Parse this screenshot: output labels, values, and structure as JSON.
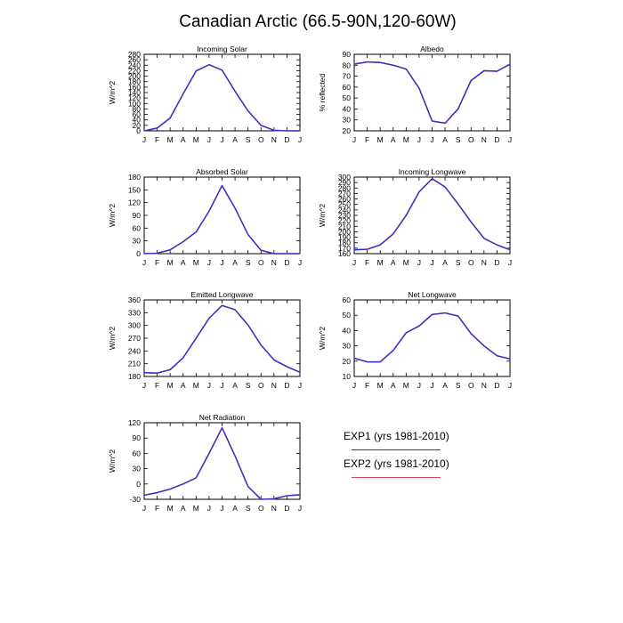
{
  "title": "Canadian Arctic (66.5-90N,120-60W)",
  "months": [
    "J",
    "F",
    "M",
    "A",
    "M",
    "J",
    "J",
    "A",
    "S",
    "O",
    "N",
    "D",
    "J"
  ],
  "legend": [
    {
      "name": "EXP1 (yrs 1981-2010)",
      "color": "#2f2fd6"
    },
    {
      "name": "EXP2 (yrs 1981-2010)",
      "color": "#e0405a"
    }
  ],
  "chart_data": [
    {
      "type": "line",
      "title": "Incoming Solar",
      "ylabel": "W/m^2",
      "ylim": [
        0,
        280
      ],
      "yticks": [
        0,
        20,
        40,
        60,
        80,
        100,
        120,
        140,
        160,
        180,
        200,
        220,
        240,
        260,
        280
      ],
      "series": [
        {
          "values": [
            0,
            10,
            47,
            135,
            219,
            242,
            222,
            145,
            73,
            20,
            2,
            0,
            0
          ]
        },
        {
          "values": [
            0,
            10,
            47,
            135,
            219,
            242,
            222,
            145,
            73,
            20,
            2,
            0,
            0
          ]
        }
      ]
    },
    {
      "type": "line",
      "title": "Albedo",
      "ylabel": "% reflected",
      "ylim": [
        20,
        90
      ],
      "yticks": [
        20,
        30,
        40,
        50,
        60,
        70,
        80,
        90
      ],
      "series": [
        {
          "values": [
            81,
            83,
            82.5,
            80,
            76.5,
            59,
            29,
            27,
            40,
            66,
            75,
            74.5,
            81
          ]
        },
        {
          "values": [
            81,
            83,
            82.5,
            80,
            76.5,
            59,
            29,
            27,
            40,
            66,
            75,
            74.5,
            81
          ]
        }
      ]
    },
    {
      "type": "line",
      "title": "Absorbed Solar",
      "ylabel": "W/m^2",
      "ylim": [
        0,
        180
      ],
      "yticks": [
        0,
        30,
        60,
        90,
        120,
        150,
        180
      ],
      "series": [
        {
          "values": [
            0,
            1,
            9,
            28,
            51,
            100,
            160,
            107,
            45,
            8,
            0,
            0,
            0
          ]
        },
        {
          "values": [
            0,
            1,
            9,
            28,
            51,
            100,
            160,
            107,
            45,
            8,
            0,
            0,
            0
          ]
        }
      ]
    },
    {
      "type": "line",
      "title": "Incoming Longwave",
      "ylabel": "W/m^2",
      "ylim": [
        160,
        300
      ],
      "yticks": [
        160,
        170,
        180,
        190,
        200,
        210,
        220,
        230,
        240,
        250,
        260,
        270,
        280,
        290,
        300
      ],
      "series": [
        {
          "values": [
            167,
            168,
            176,
            196,
            230,
            273,
            297,
            282,
            251,
            218,
            188,
            176,
            167
          ]
        },
        {
          "values": [
            167,
            168,
            176,
            196,
            230,
            273,
            297,
            282,
            251,
            218,
            188,
            176,
            167
          ]
        }
      ]
    },
    {
      "type": "line",
      "title": "Emitted Longwave",
      "ylabel": "W/m^2",
      "ylim": [
        180,
        360
      ],
      "yticks": [
        180,
        210,
        240,
        270,
        300,
        330,
        360
      ],
      "series": [
        {
          "values": [
            189,
            188,
            196,
            224,
            270,
            317,
            347,
            337,
            301,
            254,
            219,
            203,
            190
          ]
        },
        {
          "values": [
            189,
            188,
            196,
            224,
            270,
            317,
            347,
            337,
            301,
            254,
            219,
            203,
            190
          ]
        }
      ]
    },
    {
      "type": "line",
      "title": "Net Longwave",
      "ylabel": "W/m^2",
      "ylim": [
        10,
        60
      ],
      "yticks": [
        10,
        20,
        30,
        40,
        50,
        60
      ],
      "series": [
        {
          "values": [
            22,
            19.5,
            19.5,
            27,
            38.5,
            43,
            50.5,
            51.5,
            49.5,
            38,
            30,
            23.5,
            21.5
          ]
        },
        {
          "values": [
            22,
            19.5,
            19.5,
            27,
            38.5,
            43,
            50.5,
            51.5,
            49.5,
            38,
            30,
            23.5,
            21.5
          ]
        }
      ]
    },
    {
      "type": "line",
      "title": "Net Radiation",
      "ylabel": "W/m^2",
      "ylim": [
        -30,
        120
      ],
      "yticks": [
        -30,
        0,
        30,
        60,
        90,
        120
      ],
      "series": [
        {
          "values": [
            -22,
            -17,
            -10,
            0,
            12,
            60,
            110,
            55,
            -5,
            -30,
            -29,
            -23,
            -21
          ]
        },
        {
          "values": [
            -22,
            -17,
            -10,
            0,
            12,
            60,
            110,
            55,
            -5,
            -30,
            -29,
            -23,
            -21
          ]
        }
      ]
    }
  ]
}
